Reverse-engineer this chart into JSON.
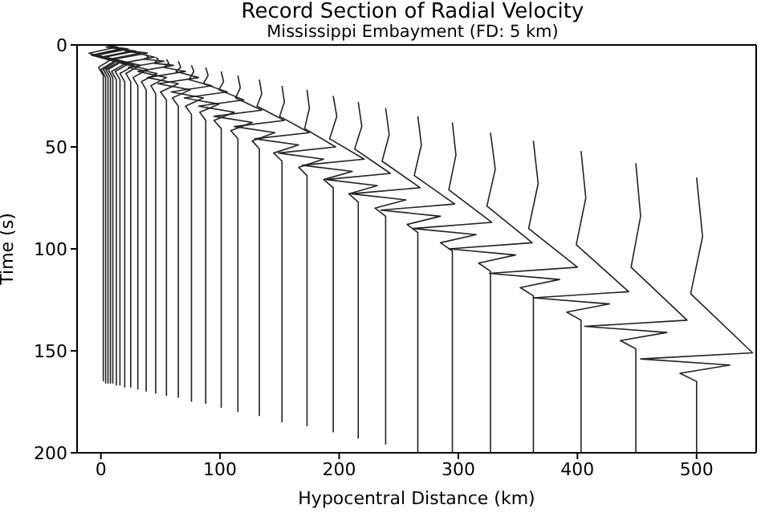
{
  "chart_data": {
    "type": "line",
    "title": "Record Section of Radial Velocity",
    "subtitle": "Mississippi Embayment (FD: 5 km)",
    "xlabel": "Hypocentral Distance (km)",
    "ylabel": "Time (s)",
    "xlim": [
      -20,
      550
    ],
    "xticks": [
      0,
      100,
      200,
      300,
      400,
      500
    ],
    "ylim": [
      200,
      0
    ],
    "yticks": [
      0,
      50,
      100,
      150,
      200
    ],
    "marker": "none",
    "line_style": "solid",
    "series": [
      {
        "color": "#222222",
        "x": [
          2,
          14,
          -10,
          9,
          -2,
          2,
          2
        ],
        "values": [
          0,
          1,
          4,
          7,
          11,
          15,
          165
        ]
      },
      {
        "color": "#222222",
        "x": [
          4,
          16,
          -8,
          11,
          0,
          4,
          4
        ],
        "values": [
          1,
          2,
          5,
          8,
          12,
          16,
          166
        ]
      },
      {
        "color": "#222222",
        "x": [
          6,
          18,
          -6,
          13,
          2,
          6,
          6
        ],
        "values": [
          1,
          2,
          5,
          8,
          12,
          16,
          166
        ]
      },
      {
        "color": "#222222",
        "x": [
          8,
          21,
          -5,
          16,
          4,
          8,
          8
        ],
        "values": [
          1,
          2,
          5,
          8,
          12,
          16,
          166
        ]
      },
      {
        "color": "#222222",
        "x": [
          10,
          23,
          -3,
          18,
          6,
          10,
          10
        ],
        "values": [
          1,
          2,
          5,
          8,
          12,
          16,
          166
        ]
      },
      {
        "color": "#222222",
        "x": [
          13,
          26,
          0,
          21,
          9,
          13,
          13
        ],
        "values": [
          2,
          3,
          6,
          9,
          13,
          17,
          167
        ]
      },
      {
        "color": "#222222",
        "x": [
          16,
          29,
          3,
          24,
          12,
          16,
          16
        ],
        "values": [
          2,
          3,
          6,
          9,
          13,
          17,
          167
        ]
      },
      {
        "color": "#222222",
        "x": [
          20,
          33,
          7,
          28,
          16,
          20,
          20
        ],
        "values": [
          3,
          4,
          7,
          10,
          14,
          18,
          168
        ]
      },
      {
        "color": "#222222",
        "x": [
          25,
          39,
          11,
          33,
          21,
          25,
          25
        ],
        "values": [
          3,
          4,
          7,
          10,
          14,
          18,
          168
        ]
      },
      {
        "color": "#222222",
        "x": [
          31,
          45,
          17,
          39,
          27,
          31,
          31
        ],
        "values": [
          4,
          6,
          9,
          12,
          16,
          20,
          169
        ]
      },
      {
        "color": "#222222",
        "x": [
          38,
          40,
          36,
          53,
          23,
          47,
          34,
          38,
          38
        ],
        "values": [
          5,
          6,
          7,
          8,
          11,
          14,
          18,
          22,
          170
        ]
      },
      {
        "color": "#222222",
        "x": [
          46,
          48,
          45,
          61,
          31,
          55,
          42,
          46,
          46
        ],
        "values": [
          6,
          7,
          9,
          10,
          13,
          16,
          20,
          24,
          171
        ]
      },
      {
        "color": "#222222",
        "x": [
          55,
          57,
          53,
          71,
          39,
          65,
          50,
          55,
          55
        ],
        "values": [
          7,
          9,
          11,
          13,
          16,
          19,
          23,
          27,
          172
        ]
      },
      {
        "color": "#222222",
        "x": [
          65,
          67,
          63,
          82,
          48,
          75,
          60,
          65,
          65
        ],
        "values": [
          8,
          11,
          13,
          16,
          19,
          22,
          26,
          30,
          173
        ]
      },
      {
        "color": "#222222",
        "x": [
          76,
          78,
          74,
          93,
          59,
          86,
          71,
          76,
          76
        ],
        "values": [
          10,
          13,
          17,
          20,
          23,
          26,
          30,
          34,
          175
        ]
      },
      {
        "color": "#222222",
        "x": [
          88,
          90,
          86,
          106,
          70,
          99,
          83,
          88,
          88
        ],
        "values": [
          11,
          15,
          19,
          23,
          26,
          29,
          33,
          37,
          176
        ]
      },
      {
        "color": "#222222",
        "x": [
          101,
          103,
          99,
          120,
          82,
          112,
          95,
          101,
          101
        ],
        "values": [
          13,
          18,
          22,
          27,
          30,
          33,
          37,
          41,
          178
        ]
      },
      {
        "color": "#222222",
        "x": [
          115,
          117,
          113,
          135,
          95,
          127,
          109,
          115,
          115
        ],
        "values": [
          15,
          21,
          26,
          32,
          35,
          38,
          42,
          46,
          180
        ]
      },
      {
        "color": "#222222",
        "x": [
          133,
          135,
          131,
          154,
          112,
          146,
          127,
          133,
          133
        ],
        "values": [
          17,
          24,
          30,
          37,
          40,
          43,
          47,
          51,
          182
        ]
      },
      {
        "color": "#222222",
        "x": [
          152,
          154,
          150,
          175,
          129,
          166,
          145,
          152,
          152
        ],
        "values": [
          20,
          28,
          35,
          43,
          46,
          49,
          53,
          57,
          185
        ]
      },
      {
        "color": "#222222",
        "x": [
          173,
          175,
          171,
          197,
          149,
          187,
          166,
          173,
          173
        ],
        "values": [
          22,
          31,
          41,
          50,
          53,
          56,
          60,
          64,
          187
        ]
      },
      {
        "color": "#222222",
        "x": [
          195,
          198,
          192,
          221,
          169,
          211,
          187,
          195,
          195
        ],
        "values": [
          25,
          35,
          46,
          56,
          59,
          62,
          66,
          70,
          190
        ]
      },
      {
        "color": "#222222",
        "x": [
          216,
          219,
          213,
          243,
          189,
          232,
          208,
          216,
          216
        ],
        "values": [
          28,
          40,
          51,
          63,
          66,
          69,
          73,
          77,
          193
        ]
      },
      {
        "color": "#222222",
        "x": [
          239,
          242,
          236,
          268,
          210,
          256,
          230,
          239,
          239
        ],
        "values": [
          31,
          44,
          57,
          70,
          73,
          76,
          80,
          84,
          196
        ]
      },
      {
        "color": "#222222",
        "x": [
          266,
          269,
          263,
          297,
          235,
          285,
          257,
          266,
          266
        ],
        "values": [
          35,
          49,
          64,
          78,
          81,
          84,
          88,
          92,
          200
        ]
      },
      {
        "color": "#222222",
        "x": [
          295,
          298,
          292,
          328,
          262,
          315,
          285,
          295,
          295
        ],
        "values": [
          38,
          54,
          71,
          87,
          90,
          93,
          97,
          101,
          200
        ]
      },
      {
        "color": "#222222",
        "x": [
          327,
          331,
          324,
          362,
          292,
          348,
          317,
          327,
          327
        ],
        "values": [
          43,
          61,
          79,
          97,
          100,
          103,
          107,
          111,
          200
        ]
      },
      {
        "color": "#222222",
        "x": [
          363,
          367,
          359,
          400,
          326,
          385,
          352,
          363,
          363
        ],
        "values": [
          47,
          68,
          90,
          109,
          112,
          115,
          119,
          123,
          200
        ]
      },
      {
        "color": "#222222",
        "x": [
          403,
          407,
          399,
          443,
          363,
          427,
          391,
          403,
          403
        ],
        "values": [
          52,
          75,
          98,
          121,
          124,
          127,
          131,
          135,
          200
        ]
      },
      {
        "color": "#222222",
        "x": [
          449,
          453,
          445,
          492,
          406,
          475,
          436,
          449,
          449
        ],
        "values": [
          58,
          84,
          109,
          135,
          138,
          141,
          145,
          149,
          200
        ]
      },
      {
        "color": "#222222",
        "x": [
          500,
          505,
          495,
          547,
          453,
          528,
          486,
          500,
          500
        ],
        "values": [
          65,
          94,
          122,
          151,
          154,
          157,
          161,
          165,
          200
        ]
      }
    ]
  }
}
